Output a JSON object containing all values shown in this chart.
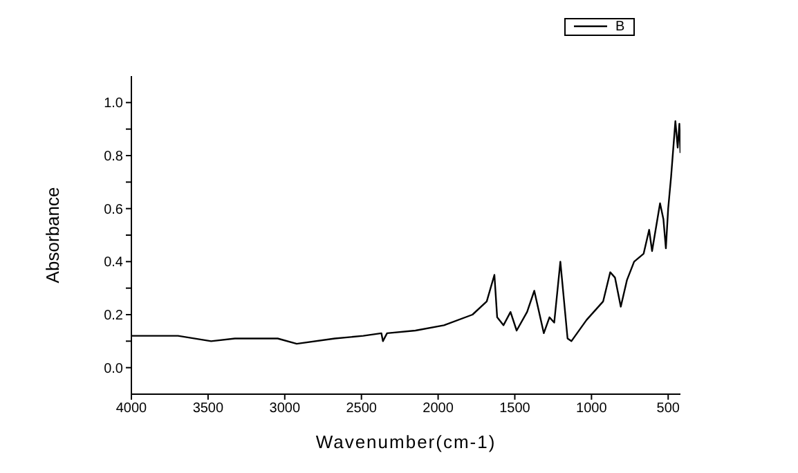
{
  "chart_data": {
    "type": "line",
    "xlabel": "Wavenumber(cm-1)",
    "ylabel": "Absorbance",
    "legend": "top right",
    "x": [
      4000,
      3696,
      3480,
      3325,
      3046,
      2922,
      2674,
      2488,
      2370,
      2360,
      2333,
      2148,
      1962,
      1776,
      1683,
      1633,
      1615,
      1574,
      1528,
      1488,
      1420,
      1373,
      1311,
      1274,
      1243,
      1203,
      1156,
      1131,
      1032,
      924,
      878,
      847,
      809,
      769,
      722,
      660,
      624,
      605,
      553,
      531,
      515,
      500,
      481,
      453,
      438,
      427,
      420
    ],
    "series": [
      {
        "name": "B",
        "color": "#000000",
        "values": [
          0.12,
          0.12,
          0.1,
          0.11,
          0.11,
          0.09,
          0.11,
          0.12,
          0.13,
          0.1,
          0.13,
          0.14,
          0.16,
          0.2,
          0.25,
          0.35,
          0.19,
          0.16,
          0.21,
          0.14,
          0.21,
          0.29,
          0.13,
          0.19,
          0.17,
          0.4,
          0.11,
          0.1,
          0.18,
          0.25,
          0.36,
          0.34,
          0.23,
          0.33,
          0.4,
          0.43,
          0.52,
          0.44,
          0.62,
          0.56,
          0.45,
          0.6,
          0.72,
          0.93,
          0.83,
          0.92,
          0.81
        ]
      }
    ],
    "xlim": [
      4000,
      420
    ],
    "xticks": [
      4000,
      3500,
      3000,
      2500,
      2000,
      1500,
      1000,
      500
    ],
    "ylim": [
      -0.1,
      1.1
    ],
    "yticks": [
      {
        "value": 0,
        "label": "0.0"
      },
      {
        "value": 0.1,
        "label": null
      },
      {
        "value": 0.2,
        "label": "0.2"
      },
      {
        "value": 0.3,
        "label": null
      },
      {
        "value": 0.4,
        "label": "0.4"
      },
      {
        "value": 0.5,
        "label": null
      },
      {
        "value": 0.6,
        "label": "0.6"
      },
      {
        "value": 0.7,
        "label": null
      },
      {
        "value": 0.8,
        "label": "0.8"
      },
      {
        "value": 0.9,
        "label": null
      },
      {
        "value": 1,
        "label": "1.0"
      }
    ]
  }
}
